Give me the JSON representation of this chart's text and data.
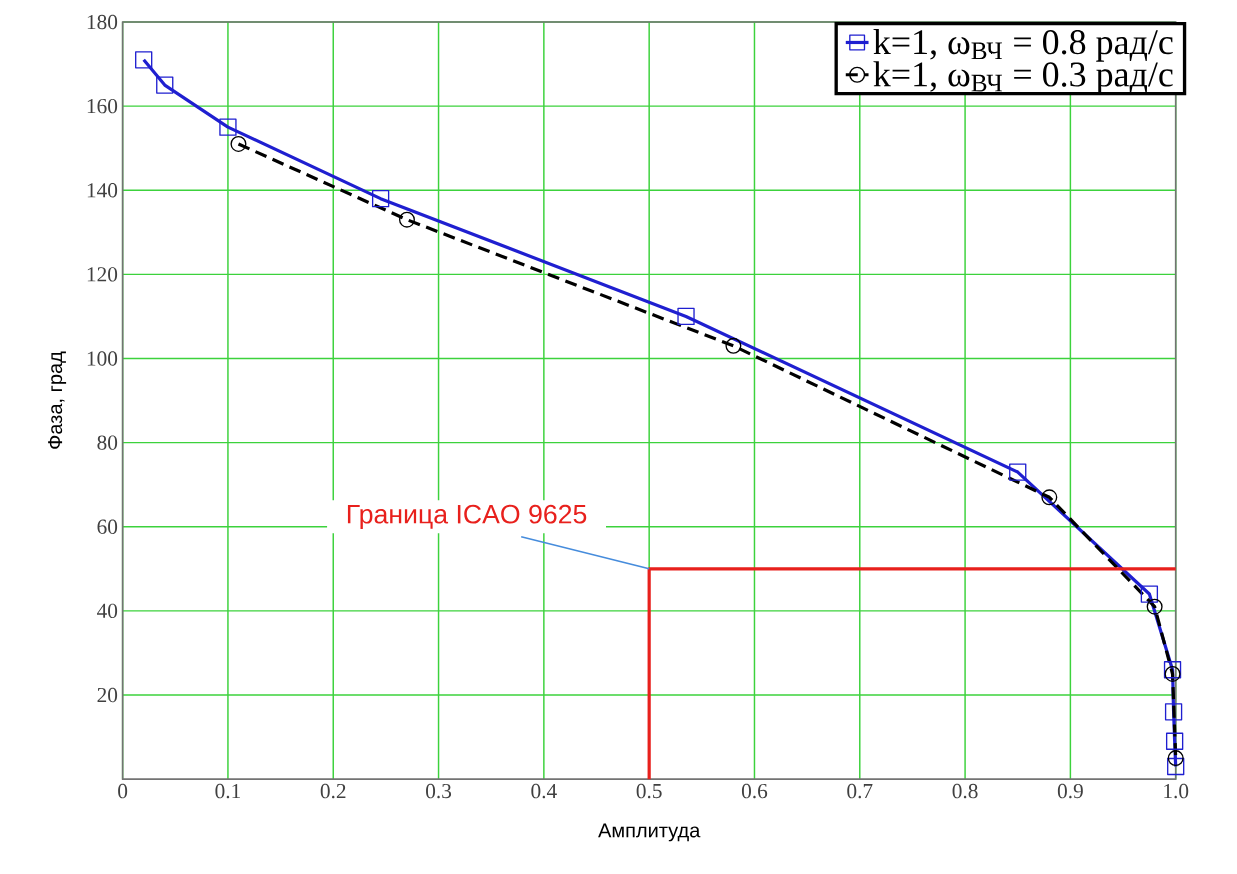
{
  "chart_data": {
    "type": "line",
    "xlabel": "Амплитуда",
    "ylabel": "Фаза, град",
    "xlim": [
      0,
      1
    ],
    "ylim": [
      0,
      180
    ],
    "xticks": [
      0,
      0.1,
      0.2,
      0.3,
      0.4,
      0.5,
      0.6,
      0.7,
      0.8,
      0.9,
      {
        "value": 1,
        "label": "1.0"
      }
    ],
    "yticks": [
      20,
      40,
      60,
      80,
      100,
      120,
      140,
      160,
      180
    ],
    "grid": true,
    "legend": "top right",
    "series": [
      {
        "name": "k=1, ω$_{ВЧ}$ = 0.8 рад/с",
        "color": "#1f1fd0",
        "marker": "square",
        "line_style": "solid",
        "x": [
          0.02,
          0.04,
          0.1,
          0.245,
          0.535,
          0.85,
          0.975,
          0.997,
          0.998,
          0.999,
          1.0
        ],
        "values": [
          171,
          165,
          155,
          138,
          110,
          73,
          44,
          26,
          16,
          9,
          3
        ]
      },
      {
        "name": "k=1, ω$_{ВЧ}$ = 0.3 рад/с",
        "color": "#000000",
        "marker": "circle",
        "line_style": "dashed",
        "x": [
          0.11,
          0.27,
          0.58,
          0.88,
          0.98,
          0.997,
          1.0
        ],
        "values": [
          151,
          133,
          103,
          67,
          41,
          25,
          5
        ]
      },
      {
        "color": "#e8201c",
        "marker": "none",
        "line_style": "solid",
        "x": [
          0.5,
          0.5,
          1.0
        ],
        "values": [
          0,
          50,
          50
        ]
      }
    ],
    "annotations": [
      {
        "text": "Граница ICAO 9625",
        "x": 0.5,
        "y": 50
      }
    ]
  }
}
